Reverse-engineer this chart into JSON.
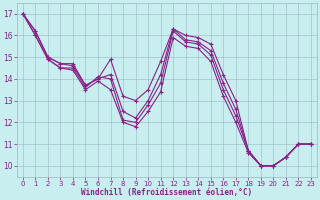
{
  "series": [
    [
      17,
      16.2,
      15.0,
      14.7,
      14.7,
      13.7,
      14.0,
      14.9,
      13.2,
      13.0,
      13.5,
      14.8,
      16.3,
      16.0,
      15.9,
      15.6,
      14.2,
      13.0,
      10.7,
      10.0,
      10.0,
      10.4,
      11.0,
      11.0
    ],
    [
      17,
      16.2,
      15.0,
      14.7,
      14.6,
      13.7,
      14.0,
      14.2,
      12.5,
      12.2,
      13.0,
      14.2,
      16.3,
      15.8,
      15.7,
      15.3,
      13.8,
      12.6,
      10.7,
      10.0,
      10.0,
      10.4,
      11.0,
      11.0
    ],
    [
      17,
      16.0,
      14.9,
      14.5,
      14.5,
      13.6,
      14.1,
      14.0,
      12.1,
      12.0,
      12.8,
      13.8,
      16.2,
      15.7,
      15.6,
      15.1,
      13.5,
      12.3,
      10.7,
      10.0,
      10.0,
      10.4,
      11.0,
      11.0
    ],
    [
      17,
      16.0,
      14.9,
      14.5,
      14.4,
      13.5,
      13.9,
      13.5,
      12.0,
      11.8,
      12.5,
      13.4,
      15.9,
      15.5,
      15.4,
      14.8,
      13.2,
      12.0,
      10.6,
      10.0,
      10.0,
      10.4,
      11.0,
      11.0
    ]
  ],
  "x": [
    0,
    1,
    2,
    3,
    4,
    5,
    6,
    7,
    8,
    9,
    10,
    11,
    12,
    13,
    14,
    15,
    16,
    17,
    18,
    19,
    20,
    21,
    22,
    23
  ],
  "line_color": "#882288",
  "marker": "+",
  "marker_size": 3,
  "bg_color": "#c8eef0",
  "grid_color": "#9ab8c0",
  "xlabel": "Windchill (Refroidissement éolien,°C)",
  "ylabel": "",
  "xlim": [
    -0.5,
    23.5
  ],
  "ylim": [
    9.5,
    17.5
  ],
  "xticks": [
    0,
    1,
    2,
    3,
    4,
    5,
    6,
    7,
    8,
    9,
    10,
    11,
    12,
    13,
    14,
    15,
    16,
    17,
    18,
    19,
    20,
    21,
    22,
    23
  ],
  "yticks": [
    10,
    11,
    12,
    13,
    14,
    15,
    16,
    17
  ],
  "xlabel_color": "#882288",
  "tick_color": "#882288",
  "line_width": 0.8
}
